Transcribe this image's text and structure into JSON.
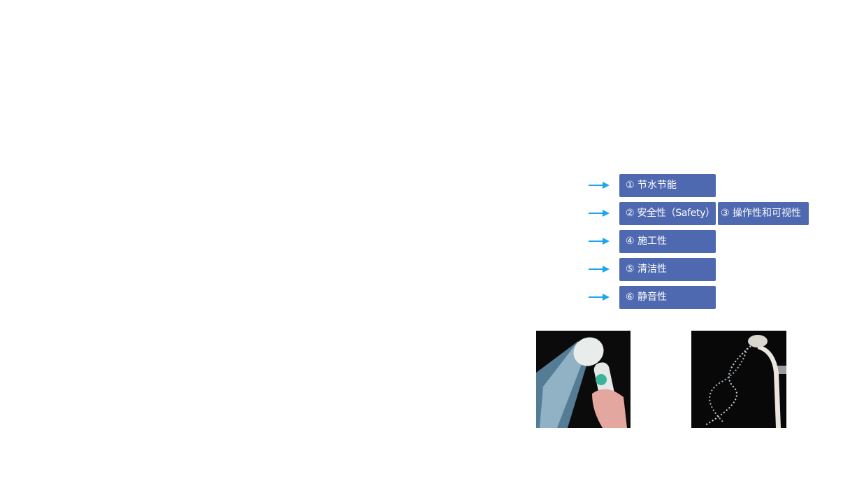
{
  "features": [
    {
      "label": "① 节水节能"
    },
    {
      "label": "② 安全性（Safety）"
    },
    {
      "label": "③ 操作性和可视性"
    },
    {
      "label": "④ 施工性"
    },
    {
      "label": "⑤ 清洁性"
    },
    {
      "label": "⑥ 静音性"
    }
  ],
  "colors": {
    "box": "#4f69b1",
    "arrow": "#1ba7ef"
  },
  "icons": [
    "arrow-right-icon"
  ]
}
